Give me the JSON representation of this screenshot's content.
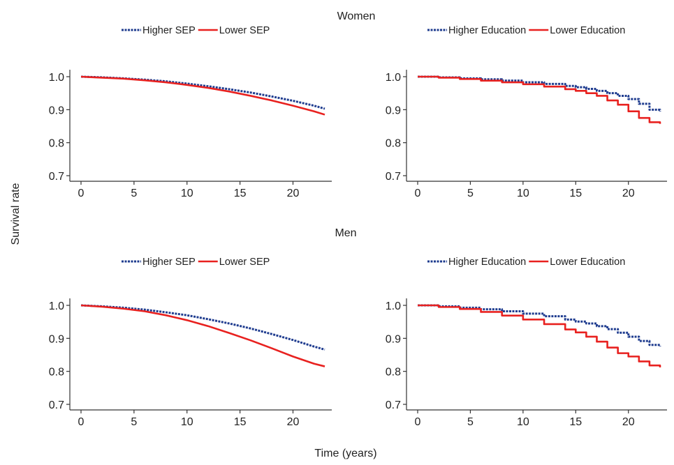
{
  "figure": {
    "section_titles": [
      "Women",
      "Men"
    ],
    "ylabel": "Survival rate",
    "xlabel": "Time (years)"
  },
  "colors": {
    "higher": "#1f3c8f",
    "lower": "#e8211f",
    "axis": "#333333"
  },
  "chart_data": [
    {
      "type": "line",
      "section": "Women",
      "xlim": [
        0,
        23
      ],
      "ylim": [
        0.7,
        1.0
      ],
      "xticks": [
        0,
        5,
        10,
        15,
        20
      ],
      "yticks": [
        0.7,
        0.8,
        0.9,
        1.0
      ],
      "ytick_labels": [
        "0.7",
        "0.8",
        "0.9",
        "1.0"
      ],
      "grid": false,
      "legend_position": "top",
      "series": [
        {
          "name": "Higher SEP",
          "style": "dashed",
          "color": "#1f3c8f",
          "x": [
            0,
            2,
            4,
            6,
            8,
            10,
            12,
            14,
            16,
            18,
            20,
            22,
            23
          ],
          "y": [
            1.0,
            0.998,
            0.995,
            0.991,
            0.986,
            0.979,
            0.971,
            0.962,
            0.952,
            0.94,
            0.927,
            0.912,
            0.903
          ]
        },
        {
          "name": "Lower SEP",
          "style": "solid",
          "color": "#e8211f",
          "x": [
            0,
            2,
            4,
            6,
            8,
            10,
            12,
            14,
            16,
            18,
            20,
            22,
            23
          ],
          "y": [
            1.0,
            0.997,
            0.994,
            0.989,
            0.983,
            0.975,
            0.966,
            0.955,
            0.942,
            0.928,
            0.912,
            0.895,
            0.885
          ]
        }
      ]
    },
    {
      "type": "line",
      "section": "Women",
      "xlim": [
        0,
        23
      ],
      "ylim": [
        0.7,
        1.0
      ],
      "xticks": [
        0,
        5,
        10,
        15,
        20
      ],
      "yticks": [
        0.7,
        0.8,
        0.9,
        1.0
      ],
      "ytick_labels": [
        "0.7",
        "0.8",
        "0.9",
        "1.0"
      ],
      "grid": false,
      "legend_position": "top",
      "series": [
        {
          "name": "Higher Education",
          "style": "dashed",
          "color": "#1f3c8f",
          "step": true,
          "x": [
            0,
            2,
            4,
            6,
            8,
            10,
            12,
            14,
            15,
            16,
            17,
            18,
            19,
            20,
            21,
            22,
            23
          ],
          "y": [
            1.0,
            0.998,
            0.995,
            0.992,
            0.988,
            0.983,
            0.978,
            0.972,
            0.968,
            0.963,
            0.957,
            0.95,
            0.942,
            0.932,
            0.918,
            0.9,
            0.895
          ]
        },
        {
          "name": "Lower Education",
          "style": "solid",
          "color": "#e8211f",
          "step": true,
          "x": [
            0,
            2,
            4,
            6,
            8,
            10,
            12,
            14,
            15,
            16,
            17,
            18,
            19,
            20,
            21,
            22,
            23
          ],
          "y": [
            1.0,
            0.997,
            0.993,
            0.988,
            0.983,
            0.977,
            0.97,
            0.962,
            0.957,
            0.95,
            0.942,
            0.928,
            0.915,
            0.895,
            0.875,
            0.862,
            0.857
          ]
        }
      ]
    },
    {
      "type": "line",
      "section": "Men",
      "xlim": [
        0,
        23
      ],
      "ylim": [
        0.7,
        1.0
      ],
      "xticks": [
        0,
        5,
        10,
        15,
        20
      ],
      "yticks": [
        0.7,
        0.8,
        0.9,
        1.0
      ],
      "ytick_labels": [
        "0.7",
        "0.8",
        "0.9",
        "1.0"
      ],
      "grid": false,
      "legend_position": "top",
      "series": [
        {
          "name": "Higher SEP",
          "style": "dashed",
          "color": "#1f3c8f",
          "x": [
            0,
            2,
            4,
            6,
            8,
            10,
            12,
            14,
            16,
            18,
            20,
            22,
            23
          ],
          "y": [
            1.0,
            0.997,
            0.993,
            0.987,
            0.979,
            0.97,
            0.958,
            0.945,
            0.93,
            0.913,
            0.895,
            0.875,
            0.866
          ]
        },
        {
          "name": "Lower SEP",
          "style": "solid",
          "color": "#e8211f",
          "x": [
            0,
            2,
            4,
            6,
            8,
            10,
            12,
            14,
            16,
            18,
            20,
            22,
            23
          ],
          "y": [
            1.0,
            0.996,
            0.99,
            0.982,
            0.97,
            0.955,
            0.937,
            0.916,
            0.894,
            0.87,
            0.845,
            0.823,
            0.815
          ]
        }
      ]
    },
    {
      "type": "line",
      "section": "Men",
      "xlim": [
        0,
        23
      ],
      "ylim": [
        0.7,
        1.0
      ],
      "xticks": [
        0,
        5,
        10,
        15,
        20
      ],
      "yticks": [
        0.7,
        0.8,
        0.9,
        1.0
      ],
      "ytick_labels": [
        "0.7",
        "0.8",
        "0.9",
        "1.0"
      ],
      "grid": false,
      "legend_position": "top",
      "series": [
        {
          "name": "Higher Education",
          "style": "dashed",
          "color": "#1f3c8f",
          "step": true,
          "x": [
            0,
            2,
            4,
            6,
            8,
            10,
            12,
            14,
            15,
            16,
            17,
            18,
            19,
            20,
            21,
            22,
            23
          ],
          "y": [
            1.0,
            0.997,
            0.993,
            0.988,
            0.982,
            0.975,
            0.967,
            0.957,
            0.951,
            0.945,
            0.937,
            0.928,
            0.917,
            0.905,
            0.892,
            0.88,
            0.876
          ]
        },
        {
          "name": "Lower Education",
          "style": "solid",
          "color": "#e8211f",
          "step": true,
          "x": [
            0,
            2,
            4,
            6,
            8,
            10,
            12,
            14,
            15,
            16,
            17,
            18,
            19,
            20,
            21,
            22,
            23
          ],
          "y": [
            1.0,
            0.995,
            0.989,
            0.98,
            0.969,
            0.957,
            0.943,
            0.927,
            0.918,
            0.905,
            0.89,
            0.872,
            0.855,
            0.845,
            0.83,
            0.818,
            0.812
          ]
        }
      ]
    }
  ]
}
